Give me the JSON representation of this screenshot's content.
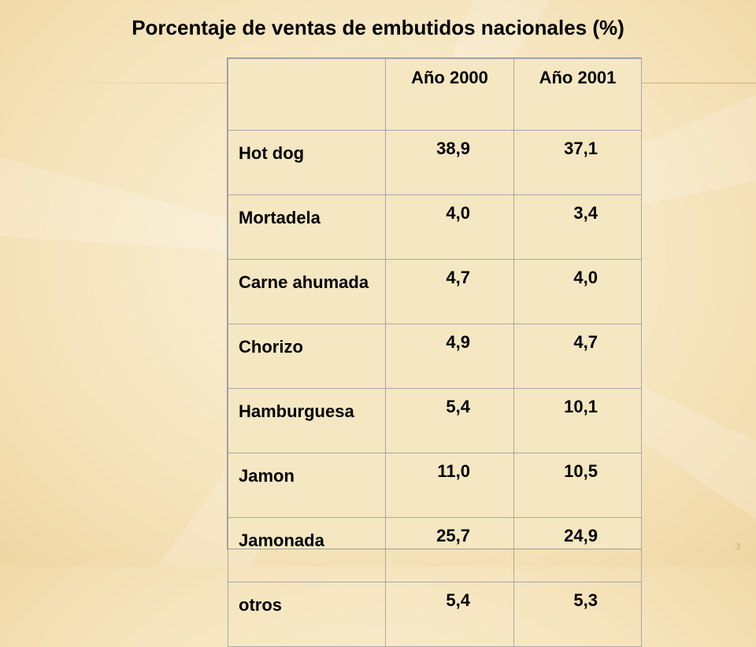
{
  "slide": {
    "title": "Porcentaje de ventas de embutidos nacionales (%)",
    "page_number": "3"
  },
  "table": {
    "headers": [
      "",
      "Año 2000",
      "Año 2001"
    ],
    "rows": [
      {
        "product": "Hot dog",
        "y2000": "38,9",
        "y2001": "37,1"
      },
      {
        "product": "Mortadela",
        "y2000": "4,0",
        "y2001": "3,4"
      },
      {
        "product": "Carne ahumada",
        "y2000": "4,7",
        "y2001": "4,0"
      },
      {
        "product": "Chorizo",
        "y2000": "4,9",
        "y2001": "4,7"
      },
      {
        "product": "Hamburguesa",
        "y2000": "5,4",
        "y2001": "10,1"
      },
      {
        "product": "Jamon",
        "y2000": "11,0",
        "y2001": "10,5"
      },
      {
        "product": "Jamonada",
        "y2000": "25,7",
        "y2001": "24,9"
      },
      {
        "product": "otros",
        "y2000": "5,4",
        "y2001": "5,3"
      }
    ]
  },
  "colors": {
    "background": "#f6e6c0",
    "accent_line": "#d4b27a",
    "text": "#000000"
  }
}
